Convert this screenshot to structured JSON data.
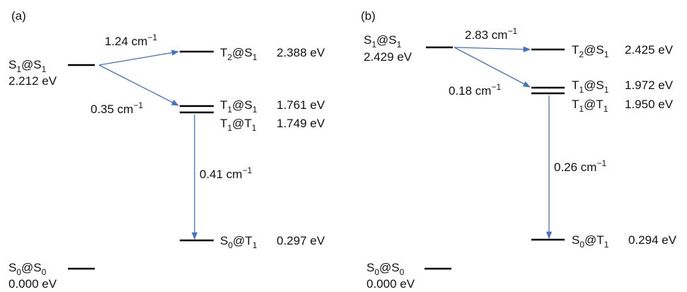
{
  "colors": {
    "level": "#000000",
    "arrow": "#4472c4",
    "text": "#111111"
  },
  "panels": [
    {
      "id": "a",
      "panel_label": "(a)",
      "s1s1": {
        "state": "S",
        "sub": "1",
        "at": "@S",
        "sub2": "1",
        "energy": "2.212 eV"
      },
      "t2s1": {
        "state": "T",
        "sub": "2",
        "at": "@S",
        "sub2": "1",
        "energy": "2.388 eV"
      },
      "t1s1": {
        "state": "T",
        "sub": "1",
        "at": "@S",
        "sub2": "1",
        "energy": "1.761 eV"
      },
      "t1t1": {
        "state": "T",
        "sub": "1",
        "at": "@T",
        "sub2": "1",
        "energy": "1.749 eV"
      },
      "s0t1": {
        "state": "S",
        "sub": "0",
        "at": "@T",
        "sub2": "1",
        "energy": "0.297 eV"
      },
      "s0s0": {
        "state": "S",
        "sub": "0",
        "at": "@S",
        "sub2": "0",
        "energy": "0.000 eV"
      },
      "rate_s1_t2": {
        "value": "1.24 cm",
        "exp": "−1"
      },
      "rate_s1_t1": {
        "value": "0.35 cm",
        "exp": "−1"
      },
      "rate_t1_s0": {
        "value": "0.41 cm",
        "exp": "−1"
      }
    },
    {
      "id": "b",
      "panel_label": "(b)",
      "s1s1": {
        "state": "S",
        "sub": "1",
        "at": "@S",
        "sub2": "1",
        "energy": "2.429 eV"
      },
      "t2s1": {
        "state": "T",
        "sub": "2",
        "at": "@S",
        "sub2": "1",
        "energy": "2.425 eV"
      },
      "t1s1": {
        "state": "T",
        "sub": "1",
        "at": "@S",
        "sub2": "1",
        "energy": "1.972 eV"
      },
      "t1t1": {
        "state": "T",
        "sub": "1",
        "at": "@T",
        "sub2": "1",
        "energy": "1.950 eV"
      },
      "s0t1": {
        "state": "S",
        "sub": "0",
        "at": "@T",
        "sub2": "1",
        "energy": "0.294 eV"
      },
      "s0s0": {
        "state": "S",
        "sub": "0",
        "at": "@S",
        "sub2": "0",
        "energy": "0.000 eV"
      },
      "rate_s1_t2": {
        "value": "2.83 cm",
        "exp": "−1"
      },
      "rate_s1_t1": {
        "value": "0.18 cm",
        "exp": "−1"
      },
      "rate_t1_s0": {
        "value": "0.26 cm",
        "exp": "−1"
      }
    }
  ]
}
